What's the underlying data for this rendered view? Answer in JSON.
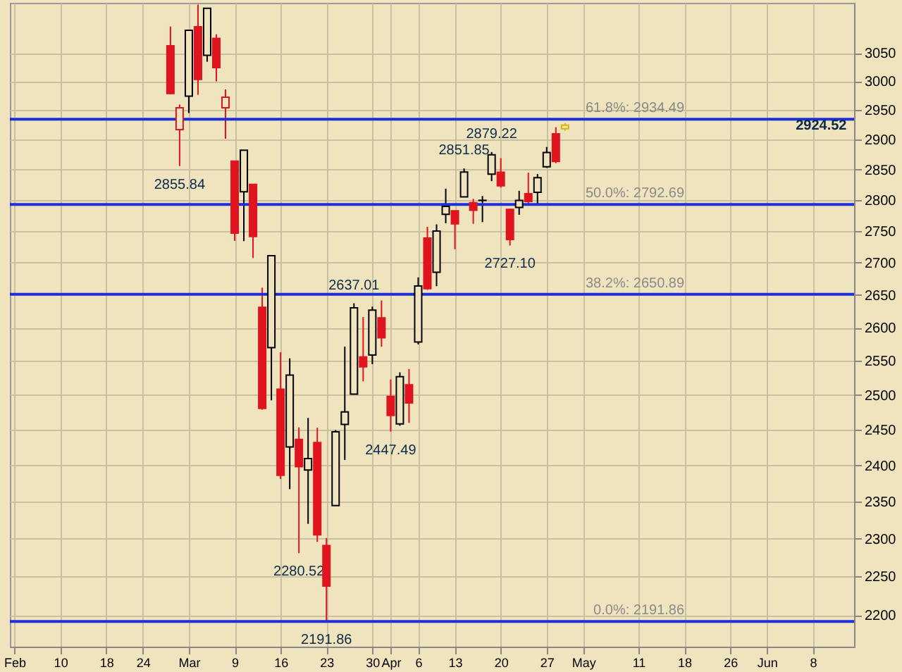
{
  "chart_data": {
    "type": "candlestick",
    "categories": [
      "Feb",
      null,
      null,
      null,
      null,
      "10",
      null,
      null,
      null,
      null,
      "18",
      null,
      null,
      null,
      "24",
      null,
      null,
      null,
      null,
      "Mar",
      null,
      null,
      null,
      null,
      "9",
      null,
      null,
      null,
      null,
      "16",
      null,
      null,
      null,
      null,
      "23",
      null,
      null,
      null,
      null,
      "30",
      null,
      "Apr",
      null,
      null,
      "6",
      null,
      null,
      null,
      "13",
      null,
      null,
      null,
      null,
      "20",
      null,
      null,
      null,
      null,
      "27",
      null,
      null,
      null,
      "May",
      null,
      null,
      null,
      null,
      null,
      "11",
      null,
      null,
      null,
      null,
      "18",
      null,
      null,
      null,
      null,
      "26",
      null,
      null,
      null,
      "Jun",
      null,
      null,
      null,
      null,
      "8",
      null,
      null,
      null,
      null
    ],
    "ohlc": [
      null,
      null,
      null,
      null,
      null,
      null,
      null,
      null,
      null,
      null,
      null,
      null,
      null,
      null,
      null,
      null,
      null,
      [
        3062.54,
        3097.07,
        2977.39,
        2978.76
      ],
      [
        2916.9,
        2959.72,
        2855.84,
        2954.22
      ],
      [
        2974.28,
        3090.96,
        2945.19,
        3090.23
      ],
      [
        3096.46,
        3136.72,
        2976.63,
        3003.37
      ],
      [
        3045.75,
        3130.97,
        3034.38,
        3130.12
      ],
      [
        3075.7,
        3083.04,
        2999.83,
        3023.94
      ],
      [
        2954.2,
        2985.93,
        2901.54,
        2972.37
      ],
      [
        2863.89,
        2863.89,
        2734.43,
        2746.56
      ],
      [
        2813.48,
        2882.59,
        2734.0,
        2882.23
      ],
      [
        2825.6,
        2825.6,
        2707.22,
        2741.38
      ],
      [
        2630.86,
        2660.95,
        2478.86,
        2480.64
      ],
      [
        2569.99,
        2711.33,
        2492.37,
        2711.02
      ],
      [
        2508.59,
        2562.98,
        2380.94,
        2386.13
      ],
      [
        2425.66,
        2553.93,
        2367.04,
        2529.19
      ],
      [
        2436.5,
        2453.57,
        2280.52,
        2398.1
      ],
      [
        2393.48,
        2466.97,
        2319.78,
        2409.39
      ],
      [
        2431.94,
        2453.01,
        2295.56,
        2304.92
      ],
      [
        2290.71,
        2300.73,
        2191.86,
        2237.4
      ],
      [
        2344.44,
        2449.71,
        2344.44,
        2447.33
      ],
      [
        2457.77,
        2571.42,
        2407.53,
        2475.56
      ],
      [
        2501.29,
        2637.01,
        2500.72,
        2630.07
      ],
      [
        2555.87,
        2615.91,
        2520.02,
        2541.47
      ],
      [
        2558.98,
        2631.8,
        2545.28,
        2626.65
      ],
      [
        2614.69,
        2641.39,
        2571.15,
        2584.59
      ],
      [
        2498.08,
        2522.75,
        2447.49,
        2470.5
      ],
      [
        2458.54,
        2533.22,
        2455.79,
        2526.9
      ],
      [
        2514.92,
        2538.18,
        2459.96,
        2488.65
      ],
      [
        2578.28,
        2676.85,
        2574.57,
        2663.68
      ],
      [
        2738.65,
        2756.89,
        2657.67,
        2659.41
      ],
      [
        2685.0,
        2760.75,
        2663.3,
        2749.98
      ],
      [
        2776.99,
        2818.57,
        2762.36,
        2789.82
      ],
      [
        2782.46,
        2782.46,
        2721.17,
        2761.63
      ],
      [
        2805.1,
        2851.85,
        2805.1,
        2846.06
      ],
      [
        2795.64,
        2801.88,
        2761.54,
        2783.36
      ],
      [
        2799.34,
        2806.51,
        2764.32,
        2799.55
      ],
      [
        2842.43,
        2879.22,
        2830.88,
        2874.56
      ],
      [
        2845.62,
        2868.98,
        2820.43,
        2823.16
      ],
      [
        2784.81,
        2785.54,
        2727.1,
        2736.56
      ],
      [
        2787.89,
        2815.1,
        2775.95,
        2799.31
      ],
      [
        2810.42,
        2844.9,
        2794.26,
        2797.8
      ],
      [
        2812.64,
        2842.71,
        2791.76,
        2836.74
      ],
      [
        2854.65,
        2887.72,
        2852.89,
        2878.48
      ],
      [
        2909.96,
        2921.15,
        2860.71,
        2863.39
      ],
      [
        2918.46,
        2928.0,
        2915.0,
        2924.52
      ],
      null,
      null,
      null,
      null,
      null,
      null,
      null,
      null,
      null,
      null,
      null,
      null,
      null,
      null,
      null,
      null,
      null,
      null,
      null,
      null,
      null,
      null,
      null,
      null,
      null,
      null,
      null,
      null,
      null,
      null,
      null
    ],
    "colors": [
      null,
      null,
      null,
      null,
      null,
      null,
      null,
      null,
      null,
      null,
      null,
      null,
      null,
      null,
      null,
      null,
      null,
      "#e0141e",
      "#e0141e",
      "#000000",
      "#e0141e",
      "#000000",
      "#e0141e",
      "#e0141e",
      "#e0141e",
      "#000000",
      "#e0141e",
      "#e0141e",
      "#000000",
      "#e0141e",
      "#000000",
      "#e0141e",
      "#000000",
      "#e0141e",
      "#e0141e",
      "#000000",
      "#000000",
      "#000000",
      "#e0141e",
      "#000000",
      "#e0141e",
      "#e0141e",
      "#000000",
      "#e0141e",
      "#000000",
      "#e0141e",
      "#000000",
      "#000000",
      "#e0141e",
      "#000000",
      "#e0141e",
      "#000000",
      "#000000",
      "#e0141e",
      "#e0141e",
      "#000000",
      "#e0141e",
      "#000000",
      "#000000",
      "#e0141e",
      "#d4b800",
      null,
      null,
      null,
      null,
      null,
      null,
      null,
      null,
      null,
      null,
      null,
      null,
      null,
      null,
      null,
      null,
      null,
      null,
      null,
      null,
      null,
      null,
      null,
      null,
      null,
      null,
      null,
      null,
      null,
      null,
      null
    ],
    "ylim": [
      2160,
      3140
    ],
    "yticks": [
      2200,
      2250,
      2300,
      2350,
      2400,
      2450,
      2500,
      2550,
      2600,
      2650,
      2700,
      2750,
      2800,
      2850,
      2900,
      2950,
      3000,
      3050
    ],
    "log": true,
    "grid": true,
    "ref_lines": [
      {
        "axis": "y",
        "value": 2934.49,
        "label": "61.8%: 2934.49",
        "color": "#1c2fd8"
      },
      {
        "axis": "y",
        "value": 2792.69,
        "label": "50.0%: 2792.69",
        "color": "#1c2fd8"
      },
      {
        "axis": "y",
        "value": 2650.89,
        "label": "38.2%: 2650.89",
        "color": "#1c2fd8"
      },
      {
        "axis": "y",
        "value": 2191.86,
        "label": "0.0%: 2191.86",
        "color": "#1c2fd8"
      }
    ],
    "annotations": [
      {
        "text": "2855.84",
        "y": 2855.84
      },
      {
        "text": "2637.01",
        "y": 2637.01
      },
      {
        "text": "2280.52",
        "y": 2280.52
      },
      {
        "text": "2191.86",
        "y": 2191.86
      },
      {
        "text": "2447.49",
        "y": 2447.49
      },
      {
        "text": "2851.85",
        "y": 2851.85
      },
      {
        "text": "2879.22",
        "y": 2879.22
      },
      {
        "text": "2727.10",
        "y": 2727.1
      },
      {
        "text": "2924.52",
        "y": 2924.52
      }
    ]
  }
}
